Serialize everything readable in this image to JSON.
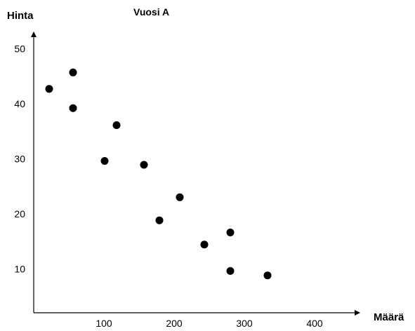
{
  "chart_data": {
    "type": "scatter",
    "title": "Vuosi A",
    "xlabel": "Määrä",
    "ylabel": "Hinta",
    "xlim": [
      0,
      480
    ],
    "ylim": [
      2,
      53
    ],
    "x_ticks": [
      100,
      200,
      300,
      400
    ],
    "y_ticks": [
      10,
      20,
      30,
      40,
      50
    ],
    "grid": false,
    "legend": "none",
    "marker_color": "#000000",
    "series": [
      {
        "points": [
          {
            "x": 22,
            "y": 42.7
          },
          {
            "x": 56,
            "y": 45.7
          },
          {
            "x": 56,
            "y": 39.2
          },
          {
            "x": 118,
            "y": 36.1
          },
          {
            "x": 101,
            "y": 29.6
          },
          {
            "x": 157,
            "y": 28.9
          },
          {
            "x": 208,
            "y": 23.0
          },
          {
            "x": 179,
            "y": 18.8
          },
          {
            "x": 280,
            "y": 16.6
          },
          {
            "x": 243,
            "y": 14.4
          },
          {
            "x": 280,
            "y": 9.6
          },
          {
            "x": 333,
            "y": 8.8
          }
        ]
      }
    ]
  }
}
